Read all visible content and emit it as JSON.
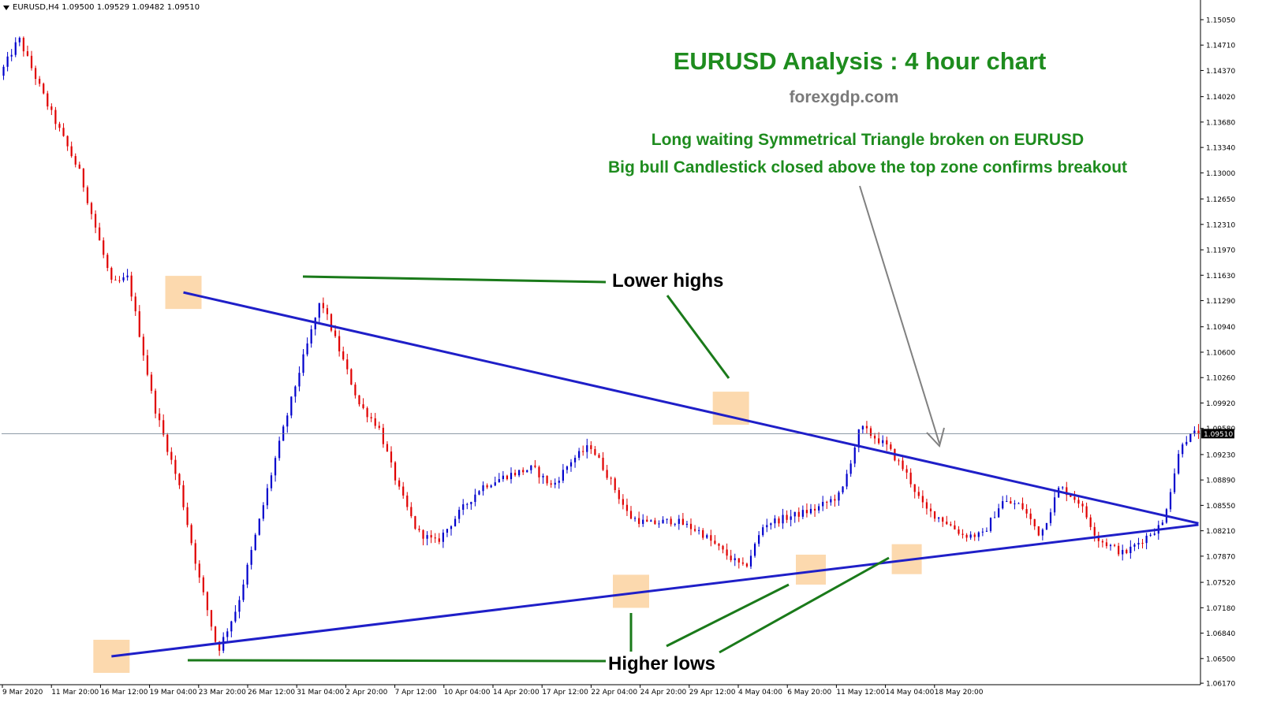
{
  "header": {
    "symbol_text": "EURUSD,H4  1.09500 1.09529 1.09482 1.09510"
  },
  "annotations": {
    "title": "EURUSD Analysis : 4 hour chart",
    "site": "forexgdp.com",
    "note_line1": "Long waiting Symmetrical Triangle broken on EURUSD",
    "note_line2": "Big bull Candlestick closed above the top zone confirms breakout",
    "lower_highs": "Lower highs",
    "higher_lows": "Higher lows"
  },
  "colors": {
    "bull": "#0000cc",
    "bear": "#e00000",
    "trendline": "#1f1fc8",
    "callout": "#1a7a1a",
    "zone": "#fcd9ae",
    "arrow": "#808080"
  },
  "chart_data": {
    "type": "candlestick",
    "symbol": "EURUSD",
    "timeframe": "H4",
    "current_price": 1.0951,
    "current_price_label": "1.09510",
    "ylim": [
      1.0615,
      1.1525
    ],
    "y_ticks": [
      "1.15050",
      "1.14710",
      "1.14370",
      "1.14020",
      "1.13680",
      "1.13340",
      "1.13000",
      "1.12650",
      "1.12310",
      "1.11970",
      "1.11630",
      "1.11290",
      "1.10940",
      "1.10600",
      "1.10260",
      "1.09920",
      "1.09580",
      "1.09230",
      "1.08890",
      "1.08550",
      "1.08210",
      "1.07870",
      "1.07520",
      "1.07180",
      "1.06840",
      "1.06500",
      "1.06170"
    ],
    "x_ticks": [
      "9 Mar 2020",
      "11 Mar 20:00",
      "16 Mar 12:00",
      "19 Mar 04:00",
      "23 Mar 20:00",
      "26 Mar 12:00",
      "31 Mar 04:00",
      "2 Apr 20:00",
      "7 Apr 12:00",
      "10 Apr 04:00",
      "14 Apr 20:00",
      "17 Apr 12:00",
      "22 Apr 04:00",
      "24 Apr 20:00",
      "29 Apr 12:00",
      "4 May 04:00",
      "6 May 20:00",
      "11 May 12:00",
      "14 May 04:00",
      "18 May 20:00"
    ],
    "n_bars": 300,
    "swing_path": [
      [
        0,
        1.143
      ],
      [
        6,
        1.148
      ],
      [
        15,
        1.139
      ],
      [
        25,
        1.13
      ],
      [
        35,
        1.115
      ],
      [
        40,
        1.116
      ],
      [
        48,
        1.099
      ],
      [
        56,
        1.088
      ],
      [
        62,
        1.076
      ],
      [
        68,
        1.066
      ],
      [
        74,
        1.072
      ],
      [
        80,
        1.082
      ],
      [
        86,
        1.092
      ],
      [
        93,
        1.103
      ],
      [
        100,
        1.113
      ],
      [
        106,
        1.106
      ],
      [
        112,
        1.099
      ],
      [
        118,
        1.096
      ],
      [
        124,
        1.088
      ],
      [
        130,
        1.082
      ],
      [
        136,
        1.0805
      ],
      [
        144,
        1.085
      ],
      [
        150,
        1.088
      ],
      [
        158,
        1.0895
      ],
      [
        166,
        1.0905
      ],
      [
        172,
        1.088
      ],
      [
        178,
        1.0915
      ],
      [
        184,
        1.0935
      ],
      [
        190,
        1.089
      ],
      [
        196,
        1.084
      ],
      [
        202,
        1.083
      ],
      [
        210,
        1.0835
      ],
      [
        218,
        1.082
      ],
      [
        226,
        1.079
      ],
      [
        232,
        1.077
      ],
      [
        238,
        1.083
      ],
      [
        246,
        1.084
      ],
      [
        254,
        1.085
      ],
      [
        262,
        1.087
      ],
      [
        268,
        1.096
      ],
      [
        276,
        1.0935
      ],
      [
        282,
        1.09
      ],
      [
        288,
        1.085
      ],
      [
        294,
        1.0835
      ],
      [
        300,
        1.0815
      ],
      [
        306,
        1.0815
      ],
      [
        312,
        1.086
      ],
      [
        318,
        1.0855
      ],
      [
        324,
        1.0815
      ],
      [
        330,
        1.088
      ],
      [
        336,
        1.086
      ],
      [
        342,
        1.081
      ],
      [
        350,
        1.079
      ],
      [
        356,
        1.081
      ],
      [
        362,
        1.083
      ],
      [
        368,
        1.094
      ],
      [
        372,
        1.0951
      ]
    ],
    "swing_bar_max": 372,
    "triangle": {
      "upper": [
        [
          45,
          1.114
        ],
        [
          299,
          1.0831
        ]
      ],
      "lower": [
        [
          27,
          1.0653
        ],
        [
          299,
          1.0829
        ]
      ]
    },
    "lower_highs": [
      1.114,
      1.0985
    ],
    "higher_lows": [
      1.0653,
      1.074,
      1.0769,
      1.0783
    ]
  }
}
